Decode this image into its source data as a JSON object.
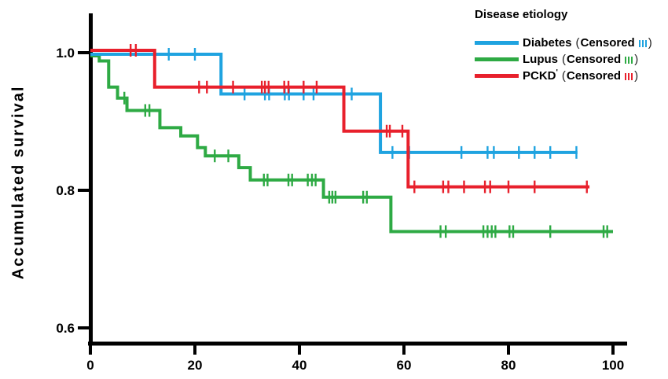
{
  "chart_data": {
    "type": "line",
    "subtype": "kaplan-meier-step",
    "title": "",
    "xlabel": "",
    "ylabel": "Accumulated survival",
    "xlim": [
      0,
      100
    ],
    "ylim": [
      0.57,
      1.02
    ],
    "x_ticks": [
      0,
      20,
      40,
      60,
      80,
      100
    ],
    "x_tick_labels": [
      "0",
      "20",
      "40",
      "60",
      "80",
      "100"
    ],
    "y_ticks": [
      1.0,
      0.8,
      0.6
    ],
    "y_tick_labels": [
      "1.0",
      "0.8",
      "0.6"
    ],
    "grid": false,
    "legend_position": "top-right",
    "axis_color": "#000000",
    "text_color": "#000000",
    "series": [
      {
        "name": "Diabetes",
        "color": "#1FA3E0",
        "steps": [
          [
            0,
            1.0
          ],
          [
            25,
            0.94
          ],
          [
            55.5,
            0.855
          ]
        ],
        "end_x": 93.2,
        "censor_x": [
          15,
          20,
          29.5,
          33.4,
          34.2,
          37.2,
          38,
          40.8,
          42.7,
          50,
          57.8,
          61,
          71,
          76,
          77.2,
          82,
          85,
          88,
          93
        ]
      },
      {
        "name": "Lupus",
        "color": "#2EAA44",
        "steps": [
          [
            0,
            1.0
          ],
          [
            1.7,
            0.988
          ],
          [
            3.5,
            0.95
          ],
          [
            5.2,
            0.934
          ],
          [
            7,
            0.916
          ],
          [
            13.3,
            0.891
          ],
          [
            17.3,
            0.879
          ],
          [
            20.5,
            0.862
          ],
          [
            22,
            0.85
          ],
          [
            28.4,
            0.833
          ],
          [
            30.6,
            0.815
          ],
          [
            44.6,
            0.79
          ],
          [
            57.5,
            0.74
          ]
        ],
        "end_x": 100,
        "censor_x": [
          6.5,
          10.5,
          11.3,
          23.8,
          26.4,
          33.2,
          33.9,
          37.9,
          38.6,
          41.6,
          42.4,
          43.1,
          45.7,
          46.3,
          46.9,
          52.2,
          52.9,
          67,
          68,
          75.2,
          76,
          76.8,
          77.5,
          80.2,
          80.9,
          88,
          98.2,
          98.9
        ]
      },
      {
        "name": "PCKD",
        "color": "#E8202C",
        "steps": [
          [
            0,
            1.0
          ],
          [
            12.3,
            0.95
          ],
          [
            48.5,
            0.886
          ],
          [
            60.8,
            0.805
          ]
        ],
        "end_x": 95.5,
        "censor_x": [
          7.7,
          8.7,
          20.8,
          22.3,
          27.3,
          32.8,
          33.4,
          34.1,
          37.1,
          37.9,
          40.8,
          43.3,
          56.7,
          57.3,
          59.7,
          62,
          67.5,
          68.5,
          71.5,
          75.5,
          76.5,
          80,
          85,
          95
        ]
      }
    ]
  },
  "legend": {
    "title": "Disease etiology",
    "censored_word": "Censored",
    "paren_open": "(",
    "paren_close": ")",
    "items": [
      {
        "label": "Diabetes",
        "mark": ""
      },
      {
        "label": "Lupus",
        "mark": ""
      },
      {
        "label": "PCKD",
        "mark": "'"
      }
    ]
  }
}
